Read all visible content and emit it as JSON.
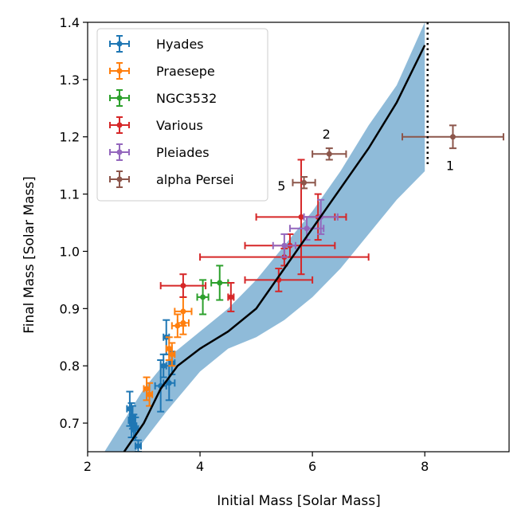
{
  "chart_data": {
    "type": "scatter",
    "xlabel": "Initial Mass [Solar Mass]",
    "ylabel": "Final Mass [Solar Mass]",
    "xlim": [
      2,
      9.5
    ],
    "ylim": [
      0.65,
      1.4
    ],
    "xticks": [
      2,
      4,
      6,
      8
    ],
    "yticks": [
      0.7,
      0.8,
      0.9,
      1.0,
      1.1,
      1.2,
      1.3,
      1.4
    ],
    "xtick_labels": [
      "2",
      "4",
      "6",
      "8"
    ],
    "ytick_labels": [
      "0.7",
      "0.8",
      "0.9",
      "1.0",
      "1.1",
      "1.2",
      "1.3",
      "1.4"
    ],
    "grid": false,
    "legend_position": "upper-left",
    "band": {
      "color": "#8fbbd9",
      "upper": [
        [
          2.3,
          0.65
        ],
        [
          3.0,
          0.76
        ],
        [
          3.5,
          0.82
        ],
        [
          4.0,
          0.86
        ],
        [
          4.5,
          0.9
        ],
        [
          5.0,
          0.95
        ],
        [
          5.5,
          1.01
        ],
        [
          6.0,
          1.07
        ],
        [
          6.5,
          1.14
        ],
        [
          7.0,
          1.22
        ],
        [
          7.5,
          1.29
        ],
        [
          8.0,
          1.4
        ]
      ],
      "lower": [
        [
          2.85,
          0.65
        ],
        [
          3.4,
          0.72
        ],
        [
          4.0,
          0.79
        ],
        [
          4.5,
          0.83
        ],
        [
          5.0,
          0.85
        ],
        [
          5.5,
          0.88
        ],
        [
          6.0,
          0.92
        ],
        [
          6.5,
          0.97
        ],
        [
          7.0,
          1.03
        ],
        [
          7.5,
          1.09
        ],
        [
          8.0,
          1.14
        ]
      ]
    },
    "model_curve": {
      "color": "#000000",
      "points": [
        [
          2.65,
          0.65
        ],
        [
          3.0,
          0.7
        ],
        [
          3.3,
          0.76
        ],
        [
          3.6,
          0.8
        ],
        [
          4.0,
          0.83
        ],
        [
          4.5,
          0.86
        ],
        [
          5.0,
          0.9
        ],
        [
          5.5,
          0.97
        ],
        [
          6.0,
          1.04
        ],
        [
          6.5,
          1.11
        ],
        [
          7.0,
          1.18
        ],
        [
          7.5,
          1.26
        ],
        [
          8.0,
          1.36
        ]
      ]
    },
    "cutoff": {
      "x": 8.05,
      "ymin": 1.15,
      "ymax": 1.4
    },
    "series": [
      {
        "name": "Hyades",
        "color": "#1f77b4",
        "points": [
          {
            "x": 2.75,
            "y": 0.725,
            "xerr": 0.05,
            "yerr": 0.03
          },
          {
            "x": 2.78,
            "y": 0.705,
            "xerr": 0.05,
            "yerr": 0.03
          },
          {
            "x": 2.8,
            "y": 0.71,
            "xerr": 0.05,
            "yerr": 0.02
          },
          {
            "x": 2.82,
            "y": 0.695,
            "xerr": 0.05,
            "yerr": 0.02
          },
          {
            "x": 2.85,
            "y": 0.69,
            "xerr": 0.05,
            "yerr": 0.02
          },
          {
            "x": 2.9,
            "y": 0.66,
            "xerr": 0.05,
            "yerr": 0.01
          },
          {
            "x": 3.3,
            "y": 0.765,
            "xerr": 0.1,
            "yerr": 0.045
          },
          {
            "x": 3.35,
            "y": 0.8,
            "xerr": 0.05,
            "yerr": 0.02
          },
          {
            "x": 3.4,
            "y": 0.85,
            "xerr": 0.05,
            "yerr": 0.03
          },
          {
            "x": 3.45,
            "y": 0.77,
            "xerr": 0.1,
            "yerr": 0.03
          },
          {
            "x": 3.5,
            "y": 0.805,
            "xerr": 0.05,
            "yerr": 0.02
          }
        ]
      },
      {
        "name": "Praesepe",
        "color": "#ff7f0e",
        "points": [
          {
            "x": 3.05,
            "y": 0.76,
            "xerr": 0.05,
            "yerr": 0.02
          },
          {
            "x": 3.1,
            "y": 0.75,
            "xerr": 0.05,
            "yerr": 0.02
          },
          {
            "x": 3.45,
            "y": 0.83,
            "xerr": 0.05,
            "yerr": 0.02
          },
          {
            "x": 3.5,
            "y": 0.82,
            "xerr": 0.05,
            "yerr": 0.02
          },
          {
            "x": 3.6,
            "y": 0.87,
            "xerr": 0.1,
            "yerr": 0.02
          },
          {
            "x": 3.7,
            "y": 0.875,
            "xerr": 0.1,
            "yerr": 0.02
          },
          {
            "x": 3.7,
            "y": 0.895,
            "xerr": 0.15,
            "yerr": 0.025
          }
        ]
      },
      {
        "name": "NGC3532",
        "color": "#2ca02c",
        "points": [
          {
            "x": 4.05,
            "y": 0.92,
            "xerr": 0.1,
            "yerr": 0.03
          },
          {
            "x": 4.35,
            "y": 0.945,
            "xerr": 0.15,
            "yerr": 0.03
          }
        ]
      },
      {
        "name": "Various",
        "color": "#d62728",
        "points": [
          {
            "x": 3.7,
            "y": 0.94,
            "xerr": 0.4,
            "yerr": 0.02
          },
          {
            "x": 4.55,
            "y": 0.92,
            "xerr": 0.05,
            "yerr": 0.025
          },
          {
            "x": 5.4,
            "y": 0.95,
            "xerr": 0.6,
            "yerr": 0.02
          },
          {
            "x": 5.5,
            "y": 0.99,
            "xerr": 1.5,
            "yerr": 0.015
          },
          {
            "x": 5.6,
            "y": 1.01,
            "xerr": 0.8,
            "yerr": 0.02
          },
          {
            "x": 5.8,
            "y": 1.06,
            "xerr": 0.8,
            "yerr": 0.1
          },
          {
            "x": 6.1,
            "y": 1.06,
            "xerr": 0.3,
            "yerr": 0.04
          }
        ]
      },
      {
        "name": "Pleiades",
        "color": "#9467bd",
        "points": [
          {
            "x": 5.5,
            "y": 1.01,
            "xerr": 0.2,
            "yerr": 0.02
          },
          {
            "x": 5.9,
            "y": 1.04,
            "xerr": 0.3,
            "yerr": 0.02
          },
          {
            "x": 6.15,
            "y": 1.06,
            "xerr": 0.3,
            "yerr": 0.03
          }
        ]
      },
      {
        "name": "alpha Persei",
        "color": "#8c564b",
        "points": [
          {
            "x": 5.85,
            "y": 1.12,
            "xerr": 0.2,
            "yerr": 0.01
          },
          {
            "x": 6.3,
            "y": 1.17,
            "xerr": 0.3,
            "yerr": 0.01
          },
          {
            "x": 8.5,
            "y": 1.2,
            "xerr": 0.9,
            "yerr": 0.02
          }
        ]
      }
    ],
    "annotations": [
      {
        "text": "1",
        "x": 8.45,
        "y": 1.15
      },
      {
        "text": "2",
        "x": 6.25,
        "y": 1.205
      },
      {
        "text": "5",
        "x": 5.45,
        "y": 1.115
      }
    ]
  }
}
